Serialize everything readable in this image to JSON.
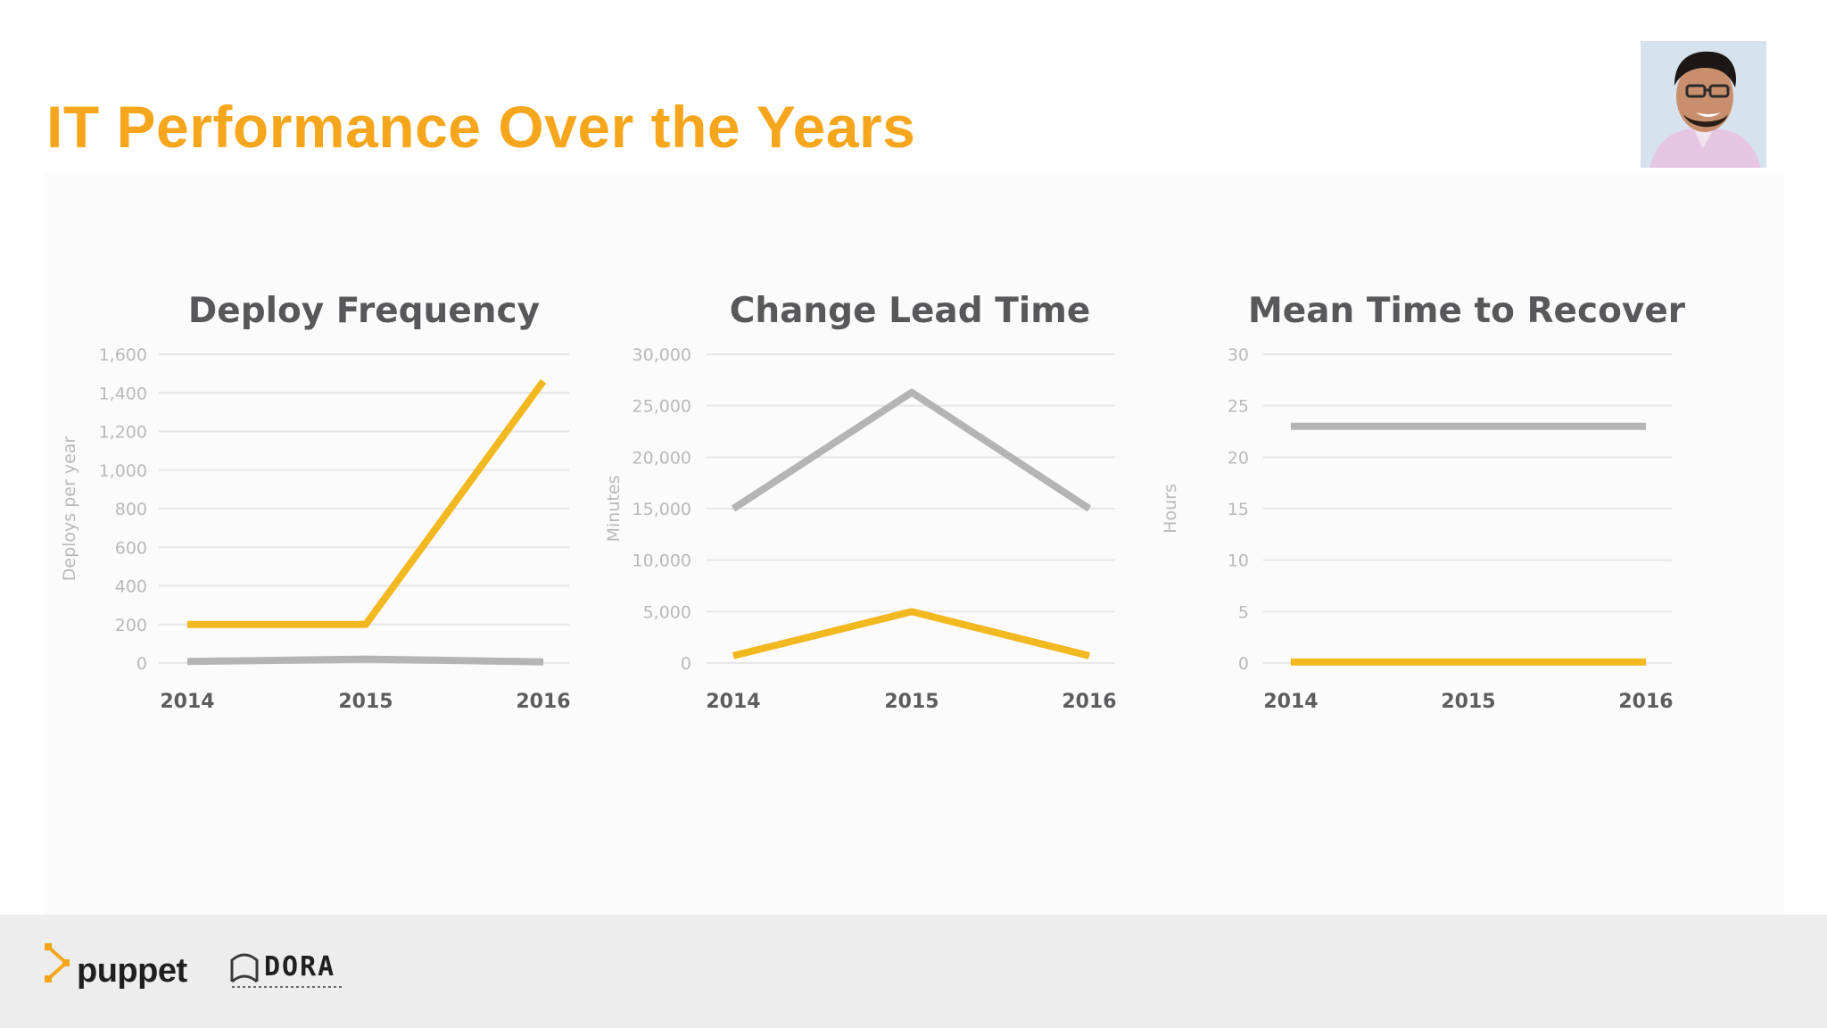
{
  "slide": {
    "title": "IT Performance Over the Years"
  },
  "branding": {
    "puppet": "puppet",
    "dora": "DORA"
  },
  "colors": {
    "accent": "#f5a61c",
    "high_performer_line": "#f2b81f",
    "low_performer_line": "#b4b4b4",
    "grid": "#e6e6e6",
    "axis_text": "#b9b9b9",
    "chart_title": "#58585a",
    "year_label": "#5d5d5f"
  },
  "chart_data": [
    {
      "type": "line",
      "title": "Deploy Frequency",
      "ylabel": "Deploys per year",
      "xlabel": "",
      "x": [
        "2014",
        "2015",
        "2016"
      ],
      "ylim": [
        0,
        1600
      ],
      "yticks": [
        0,
        200,
        400,
        600,
        800,
        1000,
        1200,
        1400,
        1600
      ],
      "ytick_labels": [
        "0",
        "200",
        "400",
        "600",
        "800",
        "1,000",
        "1,200",
        "1,400",
        "1,600"
      ],
      "grid": true,
      "series": [
        {
          "color": "#f2b81f",
          "values": [
            200,
            200,
            1460
          ]
        },
        {
          "color": "#b4b4b4",
          "values": [
            8,
            20,
            6
          ]
        }
      ]
    },
    {
      "type": "line",
      "title": "Change Lead Time",
      "ylabel": "Minutes",
      "xlabel": "",
      "x": [
        "2014",
        "2015",
        "2016"
      ],
      "ylim": [
        0,
        30000
      ],
      "yticks": [
        0,
        5000,
        10000,
        15000,
        20000,
        25000,
        30000
      ],
      "ytick_labels": [
        "0",
        "5,000",
        "10,000",
        "15,000",
        "20,000",
        "25,000",
        "30,000"
      ],
      "grid": true,
      "series": [
        {
          "color": "#b4b4b4",
          "values": [
            15000,
            26300,
            15000
          ]
        },
        {
          "color": "#f2b81f",
          "values": [
            700,
            5000,
            700
          ]
        }
      ]
    },
    {
      "type": "line",
      "title": "Mean Time to Recover",
      "ylabel": "Hours",
      "xlabel": "",
      "x": [
        "2014",
        "2015",
        "2016"
      ],
      "ylim": [
        0,
        30
      ],
      "yticks": [
        0,
        5,
        10,
        15,
        20,
        25,
        30
      ],
      "ytick_labels": [
        "0",
        "5",
        "10",
        "15",
        "20",
        "25",
        "30"
      ],
      "grid": true,
      "series": [
        {
          "color": "#b4b4b4",
          "values": [
            23,
            23,
            23
          ]
        },
        {
          "color": "#f2b81f",
          "values": [
            0.1,
            0.1,
            0.1
          ]
        }
      ]
    }
  ]
}
